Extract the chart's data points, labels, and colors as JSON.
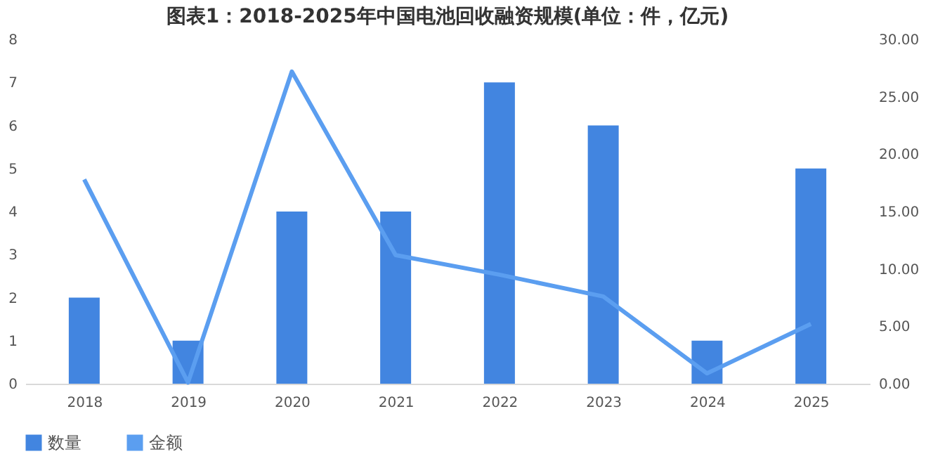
{
  "chart_data": {
    "type": "bar",
    "title": "图表1：2018-2025年中国电池回收融资规模(单位：件，亿元)",
    "categories": [
      "2018",
      "2019",
      "2020",
      "2021",
      "2022",
      "2023",
      "2024",
      "2025"
    ],
    "series": [
      {
        "name": "数量",
        "color": "#4285e0",
        "values": [
          2,
          1,
          4,
          4,
          7,
          6,
          1,
          5
        ]
      },
      {
        "name": "金额",
        "type": "line",
        "axis": "y2",
        "color": "#5b9ef0",
        "values": [
          17.8,
          0.1,
          27.2,
          11.2,
          9.5,
          7.6,
          0.9,
          5.2
        ]
      }
    ],
    "ylim": [
      0,
      8
    ],
    "yticks": [
      0,
      1,
      2,
      3,
      4,
      5,
      6,
      7,
      8
    ],
    "y2lim": [
      0,
      30
    ],
    "y2ticks": [
      {
        "value": 0,
        "label": "0.00"
      },
      {
        "value": 5,
        "label": "5.00"
      },
      {
        "value": 10,
        "label": "10.00"
      },
      {
        "value": 15,
        "label": "15.00"
      },
      {
        "value": 20,
        "label": "20.00"
      },
      {
        "value": 25,
        "label": "25.00"
      },
      {
        "value": 30,
        "label": "30.00"
      }
    ],
    "grid": false,
    "legend": "bottom",
    "marker": "none",
    "line_style": "solid"
  }
}
